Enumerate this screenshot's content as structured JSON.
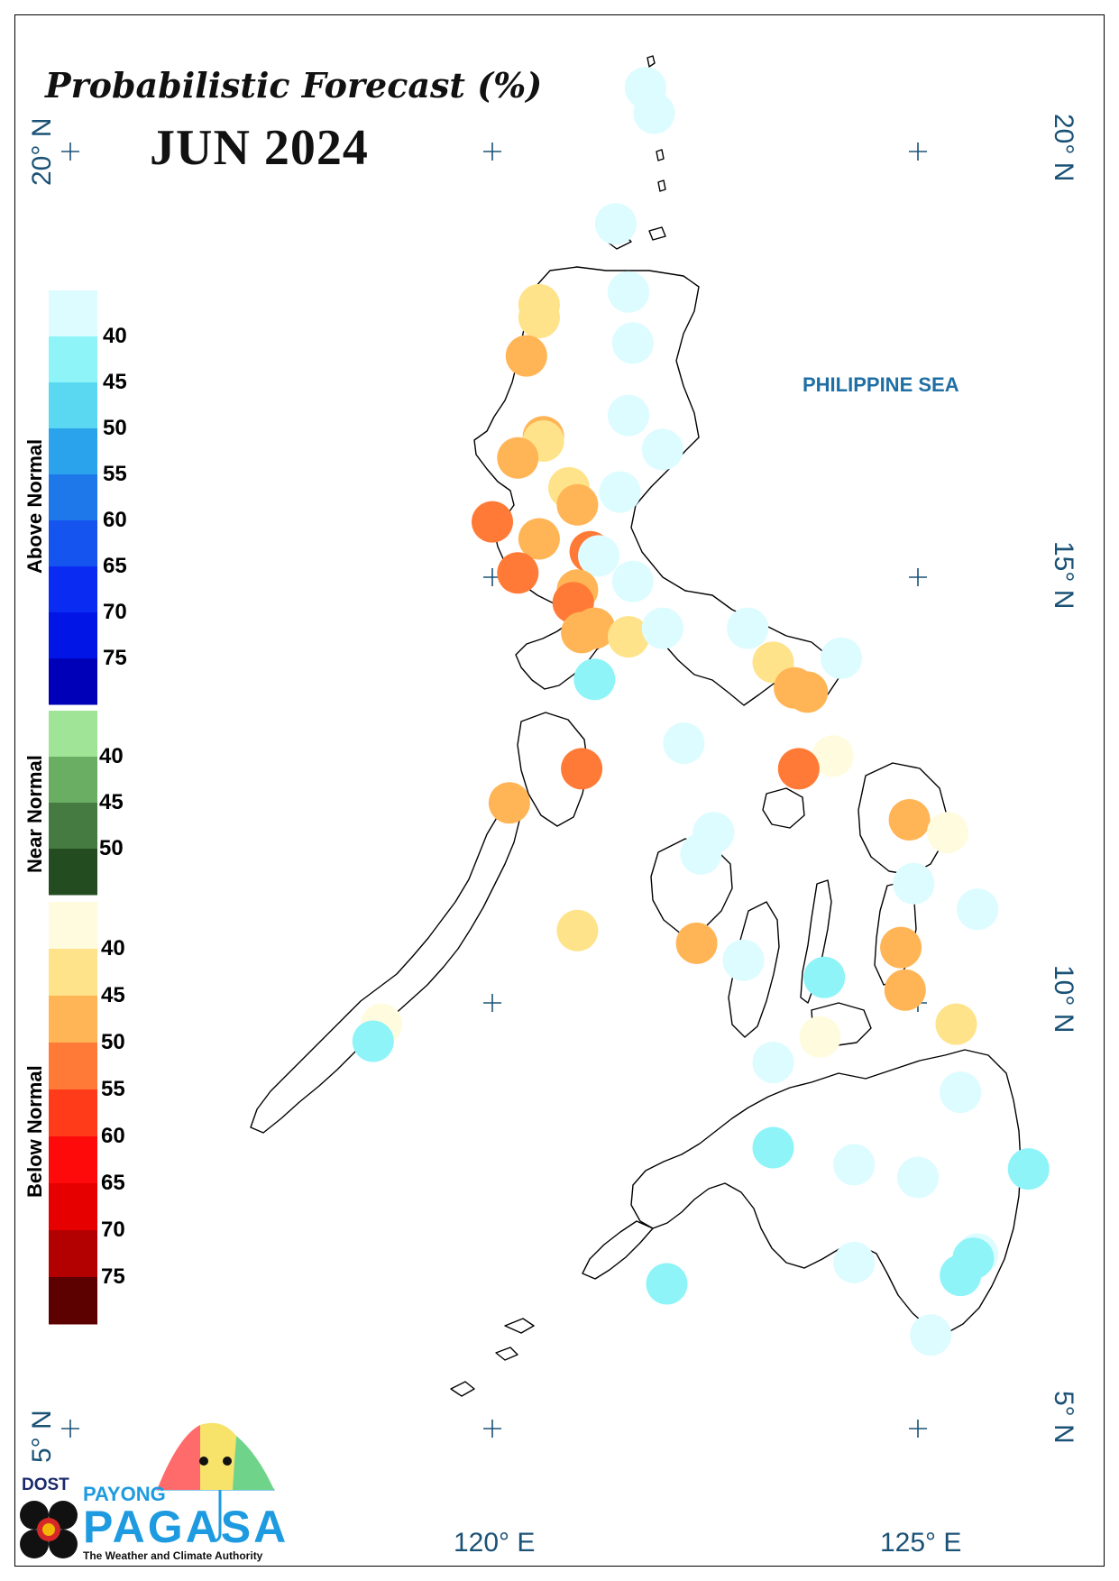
{
  "title": "Probabilistic Forecast (%)",
  "period": "JUN 2024",
  "sea_label": "PHILIPPINE SEA",
  "latitude_labels": [
    "20° N",
    "15° N",
    "10° N",
    "5° N"
  ],
  "longitude_labels": [
    "120° E",
    "125° E"
  ],
  "legend": {
    "above_normal": {
      "label": "Above Normal",
      "colors": [
        "#dcfcff",
        "#8ef4f8",
        "#5ad8f2",
        "#2aa2ec",
        "#1e78ea",
        "#1554ee",
        "#0a2cf2",
        "#0015e6",
        "#0000b8"
      ],
      "ticks": [
        "40",
        "45",
        "50",
        "55",
        "60",
        "65",
        "70",
        "75"
      ]
    },
    "near_normal": {
      "label": "Near Normal",
      "colors": [
        "#9fe497",
        "#6aae63",
        "#457a40",
        "#234d20"
      ],
      "ticks": [
        "40",
        "45",
        "50"
      ]
    },
    "below_normal": {
      "label": "Below Normal",
      "colors": [
        "#fffbde",
        "#ffe38a",
        "#ffb556",
        "#ff7a36",
        "#ff3b1a",
        "#ff0a0a",
        "#e60000",
        "#b30000",
        "#5c0000"
      ],
      "ticks": [
        "40",
        "45",
        "50",
        "55",
        "60",
        "65",
        "70",
        "75"
      ]
    }
  },
  "stations": [
    {
      "lat": 20.75,
      "lon": 121.8,
      "color": "#dcfcff"
    },
    {
      "lat": 20.45,
      "lon": 121.9,
      "color": "#dcfcff"
    },
    {
      "lat": 19.15,
      "lon": 121.45,
      "color": "#dcfcff"
    },
    {
      "lat": 18.35,
      "lon": 121.6,
      "color": "#dcfcff"
    },
    {
      "lat": 18.2,
      "lon": 120.55,
      "color": "#ffe38a"
    },
    {
      "lat": 18.05,
      "lon": 120.55,
      "color": "#ffe38a"
    },
    {
      "lat": 17.75,
      "lon": 121.65,
      "color": "#dcfcff"
    },
    {
      "lat": 17.6,
      "lon": 120.4,
      "color": "#ffb556"
    },
    {
      "lat": 16.9,
      "lon": 121.6,
      "color": "#dcfcff"
    },
    {
      "lat": 16.65,
      "lon": 120.6,
      "color": "#ffb556"
    },
    {
      "lat": 16.6,
      "lon": 120.6,
      "color": "#ffe38a"
    },
    {
      "lat": 16.5,
      "lon": 122.0,
      "color": "#dcfcff"
    },
    {
      "lat": 16.4,
      "lon": 120.3,
      "color": "#ffb556"
    },
    {
      "lat": 16.05,
      "lon": 120.9,
      "color": "#ffe38a"
    },
    {
      "lat": 16.0,
      "lon": 121.5,
      "color": "#dcfcff"
    },
    {
      "lat": 15.85,
      "lon": 121.0,
      "color": "#ffb556"
    },
    {
      "lat": 15.65,
      "lon": 120.0,
      "color": "#ff7a36"
    },
    {
      "lat": 15.45,
      "lon": 120.55,
      "color": "#ffb556"
    },
    {
      "lat": 15.3,
      "lon": 121.15,
      "color": "#ff7a36"
    },
    {
      "lat": 15.25,
      "lon": 121.25,
      "color": "#dcfcff"
    },
    {
      "lat": 15.05,
      "lon": 120.3,
      "color": "#ff7a36"
    },
    {
      "lat": 14.95,
      "lon": 121.65,
      "color": "#dcfcff"
    },
    {
      "lat": 14.85,
      "lon": 121.0,
      "color": "#ffb556"
    },
    {
      "lat": 14.7,
      "lon": 120.95,
      "color": "#ff7a36"
    },
    {
      "lat": 14.4,
      "lon": 121.2,
      "color": "#ffb556"
    },
    {
      "lat": 14.35,
      "lon": 121.05,
      "color": "#ffb556"
    },
    {
      "lat": 14.3,
      "lon": 121.6,
      "color": "#ffe38a"
    },
    {
      "lat": 14.4,
      "lon": 122.0,
      "color": "#dcfcff"
    },
    {
      "lat": 14.4,
      "lon": 123.0,
      "color": "#dcfcff"
    },
    {
      "lat": 14.0,
      "lon": 123.3,
      "color": "#ffe38a"
    },
    {
      "lat": 14.05,
      "lon": 124.1,
      "color": "#dcfcff"
    },
    {
      "lat": 13.8,
      "lon": 121.2,
      "color": "#8ef4f8"
    },
    {
      "lat": 13.7,
      "lon": 123.55,
      "color": "#ffb556"
    },
    {
      "lat": 13.65,
      "lon": 123.7,
      "color": "#ffb556"
    },
    {
      "lat": 13.05,
      "lon": 122.25,
      "color": "#dcfcff"
    },
    {
      "lat": 12.9,
      "lon": 124.0,
      "color": "#fffbde"
    },
    {
      "lat": 12.75,
      "lon": 121.05,
      "color": "#ff7a36"
    },
    {
      "lat": 12.75,
      "lon": 123.6,
      "color": "#ff7a36"
    },
    {
      "lat": 12.35,
      "lon": 120.2,
      "color": "#ffb556"
    },
    {
      "lat": 12.15,
      "lon": 124.9,
      "color": "#ffb556"
    },
    {
      "lat": 12.0,
      "lon": 125.35,
      "color": "#fffbde"
    },
    {
      "lat": 12.0,
      "lon": 122.6,
      "color": "#dcfcff"
    },
    {
      "lat": 11.75,
      "lon": 122.45,
      "color": "#dcfcff"
    },
    {
      "lat": 11.4,
      "lon": 124.95,
      "color": "#dcfcff"
    },
    {
      "lat": 11.1,
      "lon": 125.7,
      "color": "#dcfcff"
    },
    {
      "lat": 10.85,
      "lon": 121.0,
      "color": "#ffe38a"
    },
    {
      "lat": 10.7,
      "lon": 122.4,
      "color": "#ffb556"
    },
    {
      "lat": 10.65,
      "lon": 124.8,
      "color": "#ffb556"
    },
    {
      "lat": 10.5,
      "lon": 122.95,
      "color": "#dcfcff"
    },
    {
      "lat": 10.3,
      "lon": 123.9,
      "color": "#8ef4f8"
    },
    {
      "lat": 10.15,
      "lon": 124.85,
      "color": "#ffb556"
    },
    {
      "lat": 9.75,
      "lon": 118.7,
      "color": "#fffbde"
    },
    {
      "lat": 9.75,
      "lon": 125.45,
      "color": "#ffe38a"
    },
    {
      "lat": 9.6,
      "lon": 123.85,
      "color": "#fffbde"
    },
    {
      "lat": 9.55,
      "lon": 118.6,
      "color": "#8ef4f8"
    },
    {
      "lat": 9.3,
      "lon": 123.3,
      "color": "#dcfcff"
    },
    {
      "lat": 8.95,
      "lon": 125.5,
      "color": "#dcfcff"
    },
    {
      "lat": 8.3,
      "lon": 123.3,
      "color": "#8ef4f8"
    },
    {
      "lat": 8.1,
      "lon": 124.25,
      "color": "#dcfcff"
    },
    {
      "lat": 8.05,
      "lon": 126.3,
      "color": "#8ef4f8"
    },
    {
      "lat": 7.95,
      "lon": 125.0,
      "color": "#dcfcff"
    },
    {
      "lat": 7.05,
      "lon": 125.7,
      "color": "#dcfcff"
    },
    {
      "lat": 7.0,
      "lon": 125.65,
      "color": "#8ef4f8"
    },
    {
      "lat": 6.95,
      "lon": 124.25,
      "color": "#dcfcff"
    },
    {
      "lat": 6.8,
      "lon": 125.5,
      "color": "#8ef4f8"
    },
    {
      "lat": 6.7,
      "lon": 122.05,
      "color": "#8ef4f8"
    },
    {
      "lat": 6.1,
      "lon": 125.15,
      "color": "#dcfcff"
    }
  ],
  "logo": {
    "dost": "DOST",
    "payong": "PAYONG",
    "pagasa": "PAGASA",
    "tagline": "The Weather and Climate Authority"
  }
}
